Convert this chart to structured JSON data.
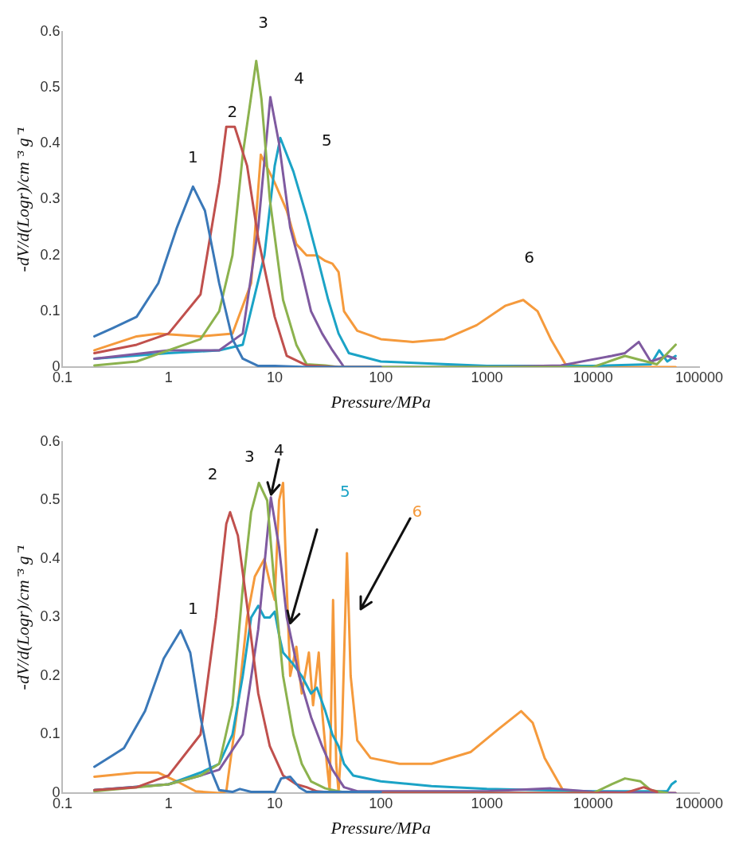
{
  "chart_data": [
    {
      "type": "line",
      "xlabel": "Pressure/MPa",
      "ylabel": "-dV/d(Logr)/cm⁻³ g⁻¹",
      "log": "x",
      "marker": "none",
      "line_style": "solid",
      "xlim": [
        0.1,
        100000
      ],
      "xticks": [
        0.1,
        1,
        10,
        100,
        1000,
        10000,
        100000
      ],
      "ylim": [
        0,
        0.6
      ],
      "yticks": [
        0,
        0.1,
        0.2,
        0.3,
        0.4,
        0.5,
        0.6
      ],
      "series": [
        {
          "name": "1",
          "color": "#3a78b8",
          "x": [
            0.2,
            0.3,
            0.5,
            0.8,
            1.2,
            1.7,
            2.2,
            3,
            4,
            5,
            7,
            10,
            20,
            100
          ],
          "values": [
            0.055,
            0.07,
            0.09,
            0.15,
            0.25,
            0.323,
            0.28,
            0.15,
            0.05,
            0.015,
            0.002,
            0.002,
            0,
            0
          ]
        },
        {
          "name": "2",
          "color": "#c0504d",
          "x": [
            0.2,
            0.5,
            1,
            2,
            3,
            3.5,
            4.2,
            5.5,
            7,
            10,
            13,
            20,
            40,
            100
          ],
          "values": [
            0.025,
            0.04,
            0.06,
            0.13,
            0.33,
            0.43,
            0.43,
            0.36,
            0.23,
            0.09,
            0.02,
            0.003,
            0,
            0
          ]
        },
        {
          "name": "3",
          "color": "#8cb24e",
          "x": [
            0.2,
            0.5,
            1,
            2,
            3,
            4,
            5,
            6.7,
            7.5,
            9,
            12,
            16,
            20,
            30,
            40,
            10000,
            20000,
            40000,
            60000
          ],
          "values": [
            0.003,
            0.01,
            0.03,
            0.05,
            0.1,
            0.2,
            0.38,
            0.548,
            0.48,
            0.3,
            0.12,
            0.04,
            0.005,
            0.003,
            0,
            0,
            0.02,
            0.005,
            0.04
          ]
        },
        {
          "name": "4",
          "color": "#7f5aa0",
          "x": [
            0.2,
            1,
            3,
            5,
            7,
            9.1,
            11,
            14,
            18,
            22,
            28,
            35,
            45,
            1000,
            5000,
            15000,
            20000,
            27000,
            35000,
            50000,
            60000
          ],
          "values": [
            0.015,
            0.03,
            0.03,
            0.06,
            0.25,
            0.483,
            0.4,
            0.25,
            0.17,
            0.1,
            0.06,
            0.03,
            0,
            0,
            0.003,
            0.02,
            0.025,
            0.045,
            0.01,
            0.02,
            0.015
          ]
        },
        {
          "name": "5",
          "color": "#1ba3c6",
          "x": [
            0.2,
            1,
            3,
            5,
            8,
            10,
            11.3,
            15,
            20,
            25,
            32,
            40,
            50,
            100,
            1000,
            10000,
            35000,
            42000,
            50000,
            60000
          ],
          "values": [
            0.015,
            0.025,
            0.03,
            0.04,
            0.2,
            0.36,
            0.41,
            0.35,
            0.27,
            0.2,
            0.12,
            0.06,
            0.025,
            0.01,
            0.002,
            0.002,
            0.005,
            0.03,
            0.01,
            0.02
          ]
        },
        {
          "name": "6",
          "color": "#f59a3c",
          "x": [
            0.2,
            0.5,
            0.8,
            2,
            4,
            6,
            7.4,
            10,
            13,
            16,
            20,
            25,
            30,
            35,
            40,
            45,
            60,
            100,
            200,
            400,
            800,
            1500,
            2200,
            3000,
            4000,
            5500,
            10000,
            60000
          ],
          "values": [
            0.03,
            0.055,
            0.06,
            0.055,
            0.06,
            0.15,
            0.38,
            0.33,
            0.28,
            0.22,
            0.2,
            0.2,
            0.19,
            0.185,
            0.17,
            0.1,
            0.065,
            0.05,
            0.045,
            0.05,
            0.075,
            0.11,
            0.12,
            0.1,
            0.05,
            0.005,
            0,
            0
          ]
        }
      ]
    },
    {
      "type": "line",
      "xlabel": "Pressure/MPa",
      "ylabel": "-dV/d(Logr)/cm⁻³ g⁻¹",
      "log": "x",
      "marker": "none",
      "line_style": "solid",
      "xlim": [
        0.1,
        100000
      ],
      "xticks": [
        0.1,
        1,
        10,
        100,
        1000,
        10000,
        100000
      ],
      "ylim": [
        0,
        0.6
      ],
      "yticks": [
        0,
        0.1,
        0.2,
        0.3,
        0.4,
        0.5,
        0.6
      ],
      "series": [
        {
          "name": "1",
          "color": "#3a78b8",
          "x": [
            0.2,
            0.3,
            0.38,
            0.6,
            0.9,
            1.3,
            1.6,
            2,
            2.5,
            3,
            4,
            4.7,
            6,
            10,
            11.5,
            14,
            17,
            20,
            100
          ],
          "values": [
            0.045,
            0.065,
            0.077,
            0.14,
            0.23,
            0.278,
            0.24,
            0.13,
            0.04,
            0.005,
            0.002,
            0.007,
            0.002,
            0.002,
            0.025,
            0.028,
            0.01,
            0.002,
            0.002
          ]
        },
        {
          "name": "2",
          "color": "#c0504d",
          "x": [
            0.2,
            0.5,
            1,
            2,
            2.8,
            3.5,
            3.8,
            4.5,
            5.5,
            7,
            9,
            12,
            16,
            20,
            25,
            40,
            100,
            20000,
            30000,
            40000
          ],
          "values": [
            0.005,
            0.01,
            0.03,
            0.1,
            0.3,
            0.46,
            0.48,
            0.44,
            0.32,
            0.17,
            0.08,
            0.03,
            0.015,
            0.01,
            0.003,
            0,
            0,
            0,
            0.01,
            0.002
          ]
        },
        {
          "name": "3",
          "color": "#8cb24e",
          "x": [
            0.2,
            1,
            2,
            3,
            4,
            5,
            6,
            7.1,
            8.5,
            10,
            12,
            15,
            18,
            22,
            30,
            40,
            50,
            10000,
            15000,
            20000,
            28000,
            35000,
            50000
          ],
          "values": [
            0.003,
            0.015,
            0.03,
            0.05,
            0.15,
            0.35,
            0.48,
            0.53,
            0.5,
            0.35,
            0.2,
            0.1,
            0.05,
            0.02,
            0.008,
            0.003,
            0,
            0,
            0.015,
            0.025,
            0.02,
            0.005,
            0
          ]
        },
        {
          "name": "4",
          "color": "#7f5aa0",
          "x": [
            0.2,
            1,
            2,
            3,
            5,
            7,
            9.2,
            11,
            13,
            17,
            22,
            28,
            35,
            45,
            60,
            1000,
            4000,
            10000,
            60000
          ],
          "values": [
            0.005,
            0.015,
            0.03,
            0.04,
            0.1,
            0.28,
            0.505,
            0.42,
            0.3,
            0.2,
            0.13,
            0.08,
            0.04,
            0.01,
            0.003,
            0.003,
            0.008,
            0.002,
            0
          ]
        },
        {
          "name": "5",
          "color": "#1ba3c6",
          "x": [
            0.2,
            1,
            2,
            3,
            4,
            5,
            6,
            7,
            8,
            9,
            10,
            11,
            12,
            15,
            18,
            22,
            25,
            30,
            35,
            40,
            45,
            55,
            100,
            300,
            1000,
            10000,
            50000,
            55000,
            60000
          ],
          "values": [
            0.005,
            0.015,
            0.035,
            0.05,
            0.1,
            0.2,
            0.3,
            0.32,
            0.3,
            0.3,
            0.31,
            0.27,
            0.24,
            0.22,
            0.2,
            0.17,
            0.18,
            0.14,
            0.1,
            0.08,
            0.05,
            0.03,
            0.02,
            0.012,
            0.007,
            0.003,
            0.003,
            0.015,
            0.02
          ]
        },
        {
          "name": "6",
          "color": "#f59a3c",
          "x": [
            0.2,
            0.5,
            0.8,
            1.2,
            1.8,
            3,
            3.5,
            4.5,
            5.5,
            6.5,
            8,
            9,
            10,
            11,
            12,
            13,
            14,
            16,
            18,
            21,
            23,
            26,
            28,
            31,
            33,
            35.5,
            38,
            40,
            43,
            48,
            52,
            60,
            80,
            150,
            300,
            700,
            1300,
            2100,
            2700,
            3500,
            5200,
            10000,
            60000
          ],
          "values": [
            0.028,
            0.035,
            0.035,
            0.02,
            0.003,
            0,
            0.003,
            0.15,
            0.3,
            0.37,
            0.4,
            0.36,
            0.33,
            0.5,
            0.53,
            0.35,
            0.2,
            0.25,
            0.17,
            0.24,
            0.15,
            0.24,
            0.14,
            0.05,
            0.005,
            0.33,
            0.05,
            0.002,
            0.1,
            0.41,
            0.2,
            0.09,
            0.06,
            0.05,
            0.05,
            0.07,
            0.11,
            0.14,
            0.12,
            0.06,
            0.005,
            0,
            0
          ]
        }
      ]
    }
  ]
}
